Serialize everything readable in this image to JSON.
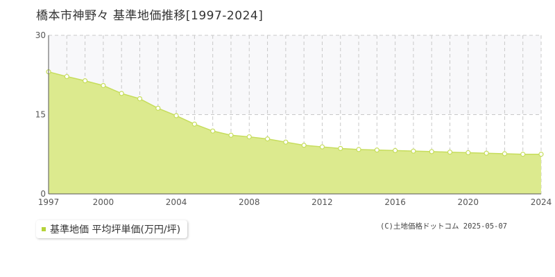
{
  "chart_data": {
    "type": "area",
    "title": "橋本市神野々 基準地価推移[1997-2024]",
    "x": [
      1997,
      1998,
      1999,
      2000,
      2001,
      2002,
      2003,
      2004,
      2005,
      2006,
      2007,
      2008,
      2009,
      2010,
      2011,
      2012,
      2013,
      2014,
      2015,
      2016,
      2017,
      2018,
      2019,
      2020,
      2021,
      2022,
      2023,
      2024
    ],
    "series": [
      {
        "name": "基準地価 平均坪単価(万円/坪)",
        "values": [
          23.1,
          22.2,
          21.4,
          20.5,
          19.0,
          18.0,
          16.2,
          14.8,
          13.2,
          11.9,
          11.1,
          10.8,
          10.4,
          9.8,
          9.2,
          8.9,
          8.6,
          8.4,
          8.3,
          8.2,
          8.1,
          8.0,
          7.9,
          7.8,
          7.7,
          7.6,
          7.5,
          7.5
        ]
      }
    ],
    "xlim": [
      1997,
      2024
    ],
    "ylim": [
      0,
      30
    ],
    "y_ticks": [
      "0",
      "15",
      "30"
    ],
    "x_ticks": [
      "1997",
      "2000",
      "2004",
      "2008",
      "2012",
      "2016",
      "2020",
      "2024"
    ],
    "xlabel": "",
    "ylabel": "",
    "grid": true,
    "legend_position": "bottom-left",
    "colors": {
      "fill": "#dcea8e",
      "line": "#c6dd5c",
      "marker_fill": "#ffffff",
      "legend_swatch": "#b5d33a",
      "grid": "#c8c8c8",
      "upper_band": "#f8f8fa"
    }
  },
  "copyright": "(C)土地価格ドットコム 2025-05-07"
}
